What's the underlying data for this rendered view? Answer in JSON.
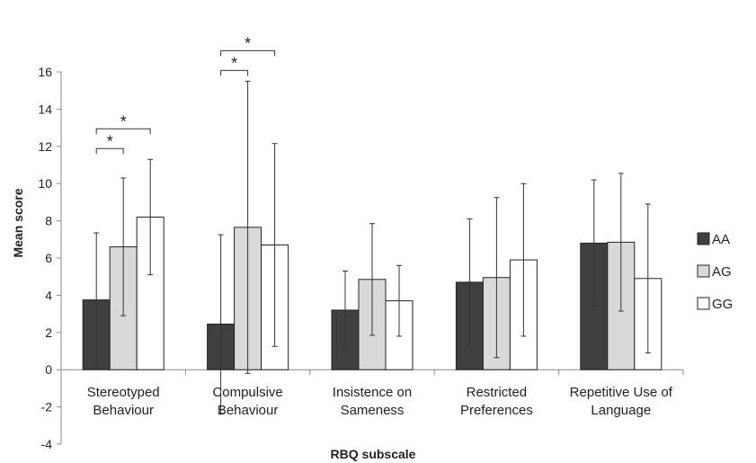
{
  "chart_data": {
    "type": "bar",
    "xlabel": "RBQ subscale",
    "ylabel": "Mean score",
    "ylim": [
      -4,
      16
    ],
    "yticks": [
      "-4",
      "-2",
      "0",
      "2",
      "4",
      "6",
      "8",
      "10",
      "12",
      "14",
      "16"
    ],
    "categories": [
      [
        "Stereotyped",
        "Behaviour"
      ],
      [
        "Compulsive",
        "Behaviour"
      ],
      [
        "Insistence on",
        "Sameness"
      ],
      [
        "Restricted",
        "Preferences"
      ],
      [
        "Repetitive Use of",
        "Language"
      ]
    ],
    "series": [
      {
        "name": "AA",
        "color": "#404040",
        "values": [
          3.75,
          2.45,
          3.2,
          4.7,
          6.8
        ],
        "error": [
          3.6,
          4.8,
          2.1,
          3.4,
          3.4
        ]
      },
      {
        "name": "AG",
        "color": "#d9d9d9",
        "values": [
          6.6,
          7.65,
          4.85,
          4.95,
          6.85
        ],
        "error": [
          3.7,
          7.85,
          3.0,
          4.3,
          3.7
        ]
      },
      {
        "name": "GG",
        "color": "#ffffff",
        "values": [
          8.2,
          6.7,
          3.7,
          5.9,
          4.9
        ],
        "error": [
          3.1,
          5.45,
          1.9,
          4.1,
          4.0
        ]
      }
    ],
    "significance": [
      {
        "category": 0,
        "from": 0,
        "to": 1,
        "label": "*"
      },
      {
        "category": 0,
        "from": 0,
        "to": 2,
        "label": "*"
      },
      {
        "category": 1,
        "from": 0,
        "to": 1,
        "label": "*"
      },
      {
        "category": 1,
        "from": 0,
        "to": 2,
        "label": "*"
      }
    ],
    "legend_position": "right"
  }
}
